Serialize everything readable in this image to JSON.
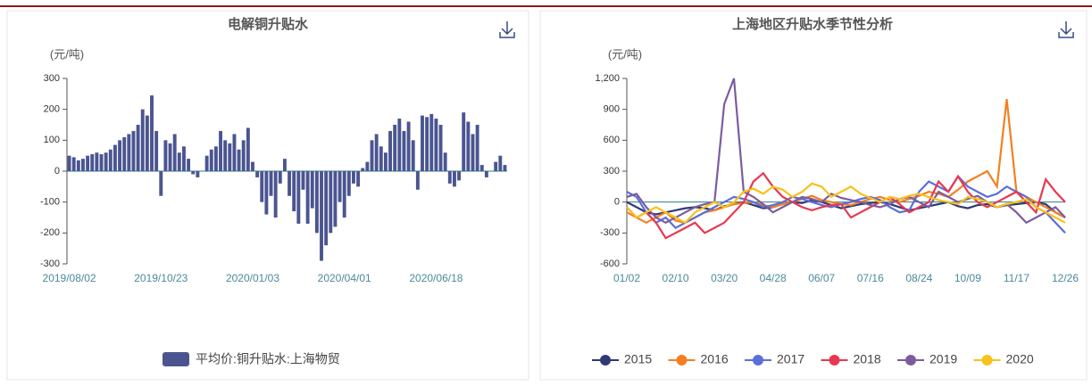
{
  "chart_data": [
    {
      "type": "bar",
      "title": "电解铜升贴水",
      "y_label": "(元/吨)",
      "categories": [
        "2019/08/02",
        null,
        null,
        null,
        null,
        null,
        null,
        null,
        null,
        null,
        null,
        null,
        null,
        null,
        null,
        null,
        null,
        null,
        null,
        null,
        "2019/10/23",
        null,
        null,
        null,
        null,
        null,
        null,
        null,
        null,
        null,
        null,
        null,
        null,
        null,
        null,
        null,
        null,
        null,
        null,
        null,
        "2020/01/03",
        null,
        null,
        null,
        null,
        null,
        null,
        null,
        null,
        null,
        null,
        null,
        null,
        null,
        null,
        null,
        null,
        null,
        null,
        null,
        "2020/04/01",
        null,
        null,
        null,
        null,
        null,
        null,
        null,
        null,
        null,
        null,
        null,
        null,
        null,
        null,
        null,
        null,
        null,
        null,
        null,
        "2020/06/18",
        null,
        null,
        null,
        null,
        null,
        null,
        null,
        null,
        null,
        null,
        null,
        null,
        null,
        null,
        null
      ],
      "series": [
        {
          "name": "平均价:铜升贴水:上海物贸",
          "color": "#4a5590",
          "values": [
            50,
            45,
            35,
            40,
            50,
            55,
            60,
            55,
            60,
            70,
            85,
            100,
            110,
            120,
            130,
            150,
            200,
            180,
            245,
            130,
            -80,
            100,
            90,
            120,
            60,
            80,
            40,
            -10,
            -20,
            0,
            50,
            70,
            80,
            130,
            100,
            90,
            120,
            70,
            100,
            140,
            30,
            -20,
            -100,
            -140,
            -80,
            -150,
            -40,
            40,
            -80,
            -130,
            -170,
            -60,
            -170,
            -120,
            -200,
            -290,
            -240,
            -200,
            -180,
            -100,
            -150,
            -80,
            -40,
            -50,
            10,
            30,
            100,
            120,
            80,
            60,
            130,
            150,
            170,
            130,
            160,
            100,
            -60,
            180,
            175,
            185,
            170,
            150,
            60,
            -40,
            -50,
            -30,
            190,
            160,
            120,
            150,
            20,
            -20,
            0,
            30,
            50,
            20
          ]
        }
      ],
      "ylim": [
        -300,
        300
      ],
      "yticks": [
        -300,
        -200,
        -100,
        0,
        100,
        200,
        300
      ],
      "grid": false
    },
    {
      "type": "line",
      "title": "上海地区升贴水季节性分析",
      "y_label": "(元/吨)",
      "categories": [
        "01/02",
        null,
        null,
        null,
        null,
        "02/10",
        null,
        null,
        null,
        null,
        "03/20",
        null,
        null,
        null,
        null,
        "04/28",
        null,
        null,
        null,
        null,
        "06/07",
        null,
        null,
        null,
        null,
        "07/16",
        null,
        null,
        null,
        null,
        "08/24",
        null,
        null,
        null,
        null,
        "10/09",
        null,
        null,
        null,
        null,
        "11/17",
        null,
        null,
        null,
        null,
        "12/26"
      ],
      "series": [
        {
          "name": "2015",
          "color": "#2e3a74",
          "values": [
            0,
            -50,
            -100,
            -120,
            -100,
            -80,
            -60,
            -50,
            -60,
            -80,
            -40,
            -20,
            0,
            -30,
            -60,
            -50,
            -20,
            0,
            -10,
            20,
            0,
            -30,
            -60,
            -40,
            -20,
            -10,
            0,
            -20,
            -50,
            -80,
            -60,
            -40,
            -20,
            0,
            -40,
            -60,
            -30,
            -20,
            -50,
            -30,
            -20,
            -10,
            0,
            -20,
            -100,
            -150
          ]
        },
        {
          "name": "2016",
          "color": "#f57f20",
          "values": [
            -100,
            -150,
            -200,
            -150,
            -100,
            -180,
            -200,
            -150,
            -100,
            -80,
            -50,
            -20,
            -10,
            0,
            -30,
            -50,
            -20,
            0,
            30,
            60,
            20,
            0,
            -20,
            -30,
            0,
            30,
            50,
            20,
            0,
            30,
            60,
            100,
            80,
            50,
            120,
            200,
            250,
            300,
            150,
            1000,
            100,
            50,
            0,
            -50,
            -100,
            -150
          ]
        },
        {
          "name": "2017",
          "color": "#5b6fd8",
          "values": [
            100,
            50,
            -100,
            -200,
            -150,
            -250,
            -200,
            -150,
            -100,
            -50,
            0,
            50,
            30,
            0,
            -50,
            -30,
            0,
            50,
            30,
            0,
            -30,
            -50,
            -20,
            0,
            30,
            50,
            20,
            -50,
            -100,
            -80,
            100,
            200,
            150,
            100,
            250,
            150,
            100,
            50,
            80,
            150,
            100,
            50,
            -50,
            -100,
            -200,
            -300
          ]
        },
        {
          "name": "2018",
          "color": "#e8384f",
          "values": [
            -50,
            -150,
            -100,
            -200,
            -350,
            -300,
            -250,
            -200,
            -300,
            -250,
            -200,
            -100,
            0,
            200,
            280,
            150,
            50,
            0,
            -50,
            -80,
            -50,
            -30,
            -20,
            -150,
            -100,
            -50,
            0,
            50,
            -20,
            -100,
            -50,
            0,
            200,
            100,
            250,
            100,
            0,
            -50,
            0,
            50,
            100,
            0,
            -100,
            220,
            100,
            0
          ]
        },
        {
          "name": "2019",
          "color": "#7b5ca0",
          "values": [
            50,
            80,
            -50,
            -150,
            -200,
            -150,
            -100,
            -50,
            -20,
            0,
            950,
            1200,
            100,
            50,
            -20,
            -100,
            -50,
            0,
            50,
            30,
            0,
            80,
            40,
            20,
            0,
            -30,
            -50,
            -20,
            30,
            50,
            0,
            -50,
            100,
            50,
            0,
            30,
            60,
            0,
            -50,
            -20,
            -100,
            -200,
            -150,
            -100,
            -50,
            -150
          ]
        },
        {
          "name": "2020",
          "color": "#f8c11b",
          "values": [
            -50,
            -150,
            -100,
            -50,
            -100,
            -150,
            -200,
            -100,
            -50,
            0,
            -50,
            0,
            100,
            130,
            80,
            150,
            120,
            50,
            100,
            180,
            150,
            50,
            100,
            150,
            80,
            40,
            0,
            50,
            30,
            60,
            80,
            50,
            20,
            0,
            -20,
            50,
            30,
            0,
            -50,
            -20,
            0,
            30,
            -50,
            -100,
            -150,
            -200
          ]
        }
      ],
      "ylim": [
        -600,
        1200
      ],
      "yticks": [
        -600,
        -300,
        0,
        300,
        600,
        900,
        {
          "value": 1200,
          "label": "1,200"
        }
      ],
      "grid": false
    }
  ]
}
